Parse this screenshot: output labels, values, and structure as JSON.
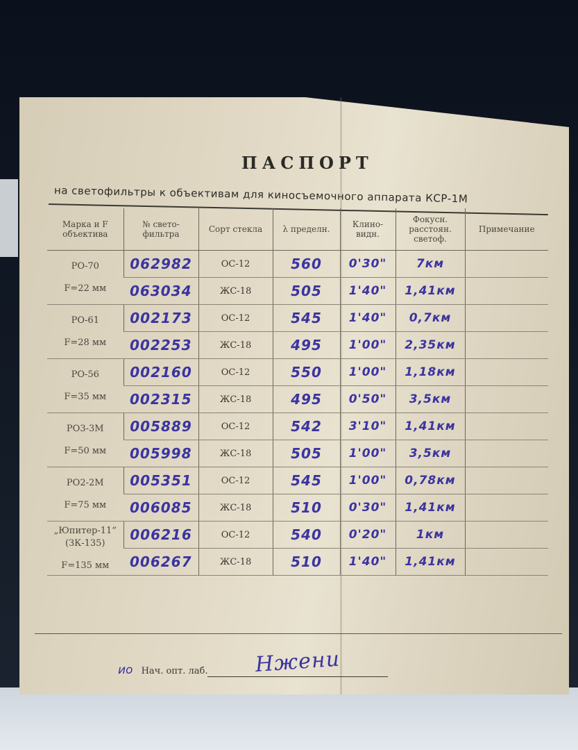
{
  "document": {
    "title": "ПАСПОРТ",
    "subtitle": "на светофильтры к объективам для киносъемочного аппарата КСР-1М",
    "headers": [
      "Марка и F объектива",
      "№ свето- фильтра",
      "Сорт стекла",
      "λ пределн.",
      "Клино- видн.",
      "Фокусн. расстоян. светоф.",
      "Примечание"
    ],
    "lenses": [
      {
        "name": "РО-70",
        "focal": "F=22 мм",
        "filters": [
          {
            "number": "062982",
            "glass": "ОС-12",
            "lambda": "560",
            "wedge": "0'30\"",
            "focus": "7км",
            "note": ""
          },
          {
            "number": "063034",
            "glass": "ЖС-18",
            "lambda": "505",
            "wedge": "1'40\"",
            "focus": "1,41км",
            "note": ""
          }
        ]
      },
      {
        "name": "РО-61",
        "focal": "F=28 мм",
        "filters": [
          {
            "number": "002173",
            "glass": "ОС-12",
            "lambda": "545",
            "wedge": "1'40\"",
            "focus": "0,7км",
            "note": ""
          },
          {
            "number": "002253",
            "glass": "ЖС-18",
            "lambda": "495",
            "wedge": "1'00\"",
            "focus": "2,35км",
            "note": ""
          }
        ]
      },
      {
        "name": "РО-56",
        "focal": "F=35 мм",
        "filters": [
          {
            "number": "002160",
            "glass": "ОС-12",
            "lambda": "550",
            "wedge": "1'00\"",
            "focus": "1,18км",
            "note": ""
          },
          {
            "number": "002315",
            "glass": "ЖС-18",
            "lambda": "495",
            "wedge": "0'50\"",
            "focus": "3,5км",
            "note": ""
          }
        ]
      },
      {
        "name": "РО3-3М",
        "focal": "F=50 мм",
        "filters": [
          {
            "number": "005889",
            "glass": "ОС-12",
            "lambda": "542",
            "wedge": "3'10\"",
            "focus": "1,41км",
            "note": ""
          },
          {
            "number": "005998",
            "glass": "ЖС-18",
            "lambda": "505",
            "wedge": "1'00\"",
            "focus": "3,5км",
            "note": ""
          }
        ]
      },
      {
        "name": "РО2-2М",
        "focal": "F=75 мм",
        "filters": [
          {
            "number": "005351",
            "glass": "ОС-12",
            "lambda": "545",
            "wedge": "1'00\"",
            "focus": "0,78км",
            "note": ""
          },
          {
            "number": "006085",
            "glass": "ЖС-18",
            "lambda": "510",
            "wedge": "0'30\"",
            "focus": "1,41км",
            "note": ""
          }
        ]
      },
      {
        "name": "„Юпитер-11“ (ЗК-135)",
        "focal": "F=135 мм",
        "filters": [
          {
            "number": "006216",
            "glass": "ОС-12",
            "lambda": "540",
            "wedge": "0'20\"",
            "focus": "1км",
            "note": ""
          },
          {
            "number": "006267",
            "glass": "ЖС-18",
            "lambda": "510",
            "wedge": "1'40\"",
            "focus": "1,41км",
            "note": ""
          }
        ]
      }
    ],
    "signature": {
      "prefix": "ио",
      "label": "Нач. опт. лаб.",
      "handwritten": "Нжени"
    },
    "ink_color": "#3b34a0"
  }
}
